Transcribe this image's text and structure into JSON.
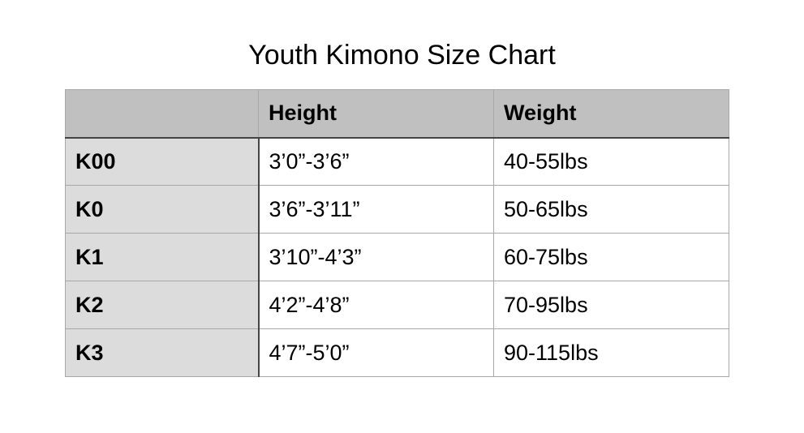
{
  "header": {
    "title": "Youth Kimono Size Chart"
  },
  "table": {
    "columns": [
      "Height",
      "Weight"
    ],
    "rows": [
      [
        "K00",
        "3’0”-3’6”",
        "40-55lbs"
      ],
      [
        "K0",
        "3’6”-3’11”",
        "50-65lbs"
      ],
      [
        "K1",
        "3’10”-4’3”",
        "60-75lbs"
      ],
      [
        "K2",
        "4’2”-4’8”",
        "70-95lbs"
      ],
      [
        "K3",
        "4’7”-5’0”",
        "90-115lbs"
      ]
    ]
  }
}
